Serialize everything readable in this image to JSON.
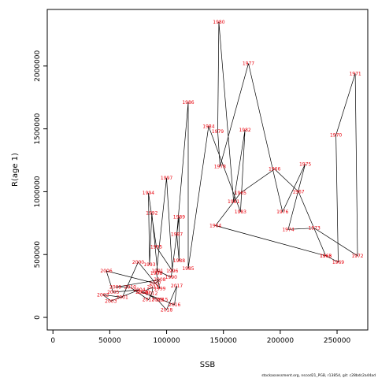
{
  "chart_data": {
    "type": "line",
    "xlabel": "SSB",
    "ylabel": "R(age 1)",
    "xlim": [
      -5000,
      277000
    ],
    "ylim": [
      -100000,
      2450000
    ],
    "xticks": [
      "0",
      "50000",
      "100000",
      "150000",
      "200000",
      "250000"
    ],
    "xtick_values": [
      0,
      50000,
      100000,
      150000,
      200000,
      250000
    ],
    "yticks": [
      "0",
      "500000",
      "1000000",
      "1500000",
      "2000000"
    ],
    "ytick_values": [
      0,
      500000,
      1000000,
      1500000,
      2000000
    ],
    "grid": false,
    "footer": "stockassessment.org, nscod21_PGB, r13854, git: c28bdc2a44ad",
    "colors": {
      "line": "#000000",
      "label": "#e8000b"
    },
    "points": [
      {
        "year": "1963",
        "x": 240000,
        "y": 490000
      },
      {
        "year": "1964",
        "x": 143000,
        "y": 730000
      },
      {
        "year": "1965",
        "x": 165000,
        "y": 990000
      },
      {
        "year": "1966",
        "x": 195000,
        "y": 1180000
      },
      {
        "year": "1967",
        "x": 216000,
        "y": 1000000
      },
      {
        "year": "1968",
        "x": 240000,
        "y": 490000
      },
      {
        "year": "1969",
        "x": 251000,
        "y": 440000
      },
      {
        "year": "1970",
        "x": 249000,
        "y": 1450000
      },
      {
        "year": "1971",
        "x": 266000,
        "y": 1940000
      },
      {
        "year": "1972",
        "x": 268000,
        "y": 490000
      },
      {
        "year": "1973",
        "x": 230000,
        "y": 710000
      },
      {
        "year": "1974",
        "x": 207000,
        "y": 700000
      },
      {
        "year": "1975",
        "x": 222000,
        "y": 1220000
      },
      {
        "year": "1976",
        "x": 202000,
        "y": 840000
      },
      {
        "year": "1977",
        "x": 172000,
        "y": 2020000
      },
      {
        "year": "1978",
        "x": 147000,
        "y": 1200000
      },
      {
        "year": "1979",
        "x": 145000,
        "y": 1480000
      },
      {
        "year": "1980",
        "x": 146000,
        "y": 2350000
      },
      {
        "year": "1981",
        "x": 159000,
        "y": 920000
      },
      {
        "year": "1982",
        "x": 169000,
        "y": 1490000
      },
      {
        "year": "1983",
        "x": 165000,
        "y": 840000
      },
      {
        "year": "1984",
        "x": 137000,
        "y": 1520000
      },
      {
        "year": "1985",
        "x": 119000,
        "y": 390000
      },
      {
        "year": "1986",
        "x": 119000,
        "y": 1710000
      },
      {
        "year": "1987",
        "x": 109000,
        "y": 660000
      },
      {
        "year": "1988",
        "x": 111000,
        "y": 450000
      },
      {
        "year": "1989",
        "x": 111000,
        "y": 800000
      },
      {
        "year": "1990",
        "x": 104000,
        "y": 320000
      },
      {
        "year": "1991",
        "x": 92000,
        "y": 370000
      },
      {
        "year": "1992",
        "x": 87000,
        "y": 830000
      },
      {
        "year": "1993",
        "x": 85000,
        "y": 420000
      },
      {
        "year": "1994",
        "x": 84000,
        "y": 990000
      },
      {
        "year": "1995",
        "x": 91000,
        "y": 560000
      },
      {
        "year": "1996",
        "x": 105000,
        "y": 370000
      },
      {
        "year": "1997",
        "x": 100000,
        "y": 1110000
      },
      {
        "year": "1998",
        "x": 91000,
        "y": 350000
      },
      {
        "year": "1999",
        "x": 94000,
        "y": 230000
      },
      {
        "year": "2000",
        "x": 75000,
        "y": 440000
      },
      {
        "year": "2001",
        "x": 61000,
        "y": 160000
      },
      {
        "year": "2002",
        "x": 44000,
        "y": 180000
      },
      {
        "year": "2003",
        "x": 51000,
        "y": 130000
      },
      {
        "year": "2004",
        "x": 76000,
        "y": 220000
      },
      {
        "year": "2005",
        "x": 53000,
        "y": 200000
      },
      {
        "year": "2006",
        "x": 47000,
        "y": 370000
      },
      {
        "year": "2007",
        "x": 90000,
        "y": 270000
      },
      {
        "year": "2008",
        "x": 94000,
        "y": 300000
      },
      {
        "year": "2009",
        "x": 55000,
        "y": 240000
      },
      {
        "year": "2010",
        "x": 68000,
        "y": 240000
      },
      {
        "year": "2011",
        "x": 84000,
        "y": 140000
      },
      {
        "year": "2012",
        "x": 87000,
        "y": 190000
      },
      {
        "year": "2013",
        "x": 88000,
        "y": 240000
      },
      {
        "year": "2014",
        "x": 78000,
        "y": 200000
      },
      {
        "year": "2015",
        "x": 96000,
        "y": 140000
      },
      {
        "year": "2016",
        "x": 107000,
        "y": 100000
      },
      {
        "year": "2017",
        "x": 109000,
        "y": 250000
      },
      {
        "year": "2018",
        "x": 100000,
        "y": 60000
      },
      {
        "year": "2019",
        "x": 92000,
        "y": 140000
      },
      {
        "year": "2020",
        "x": 80000,
        "y": 200000
      }
    ]
  }
}
